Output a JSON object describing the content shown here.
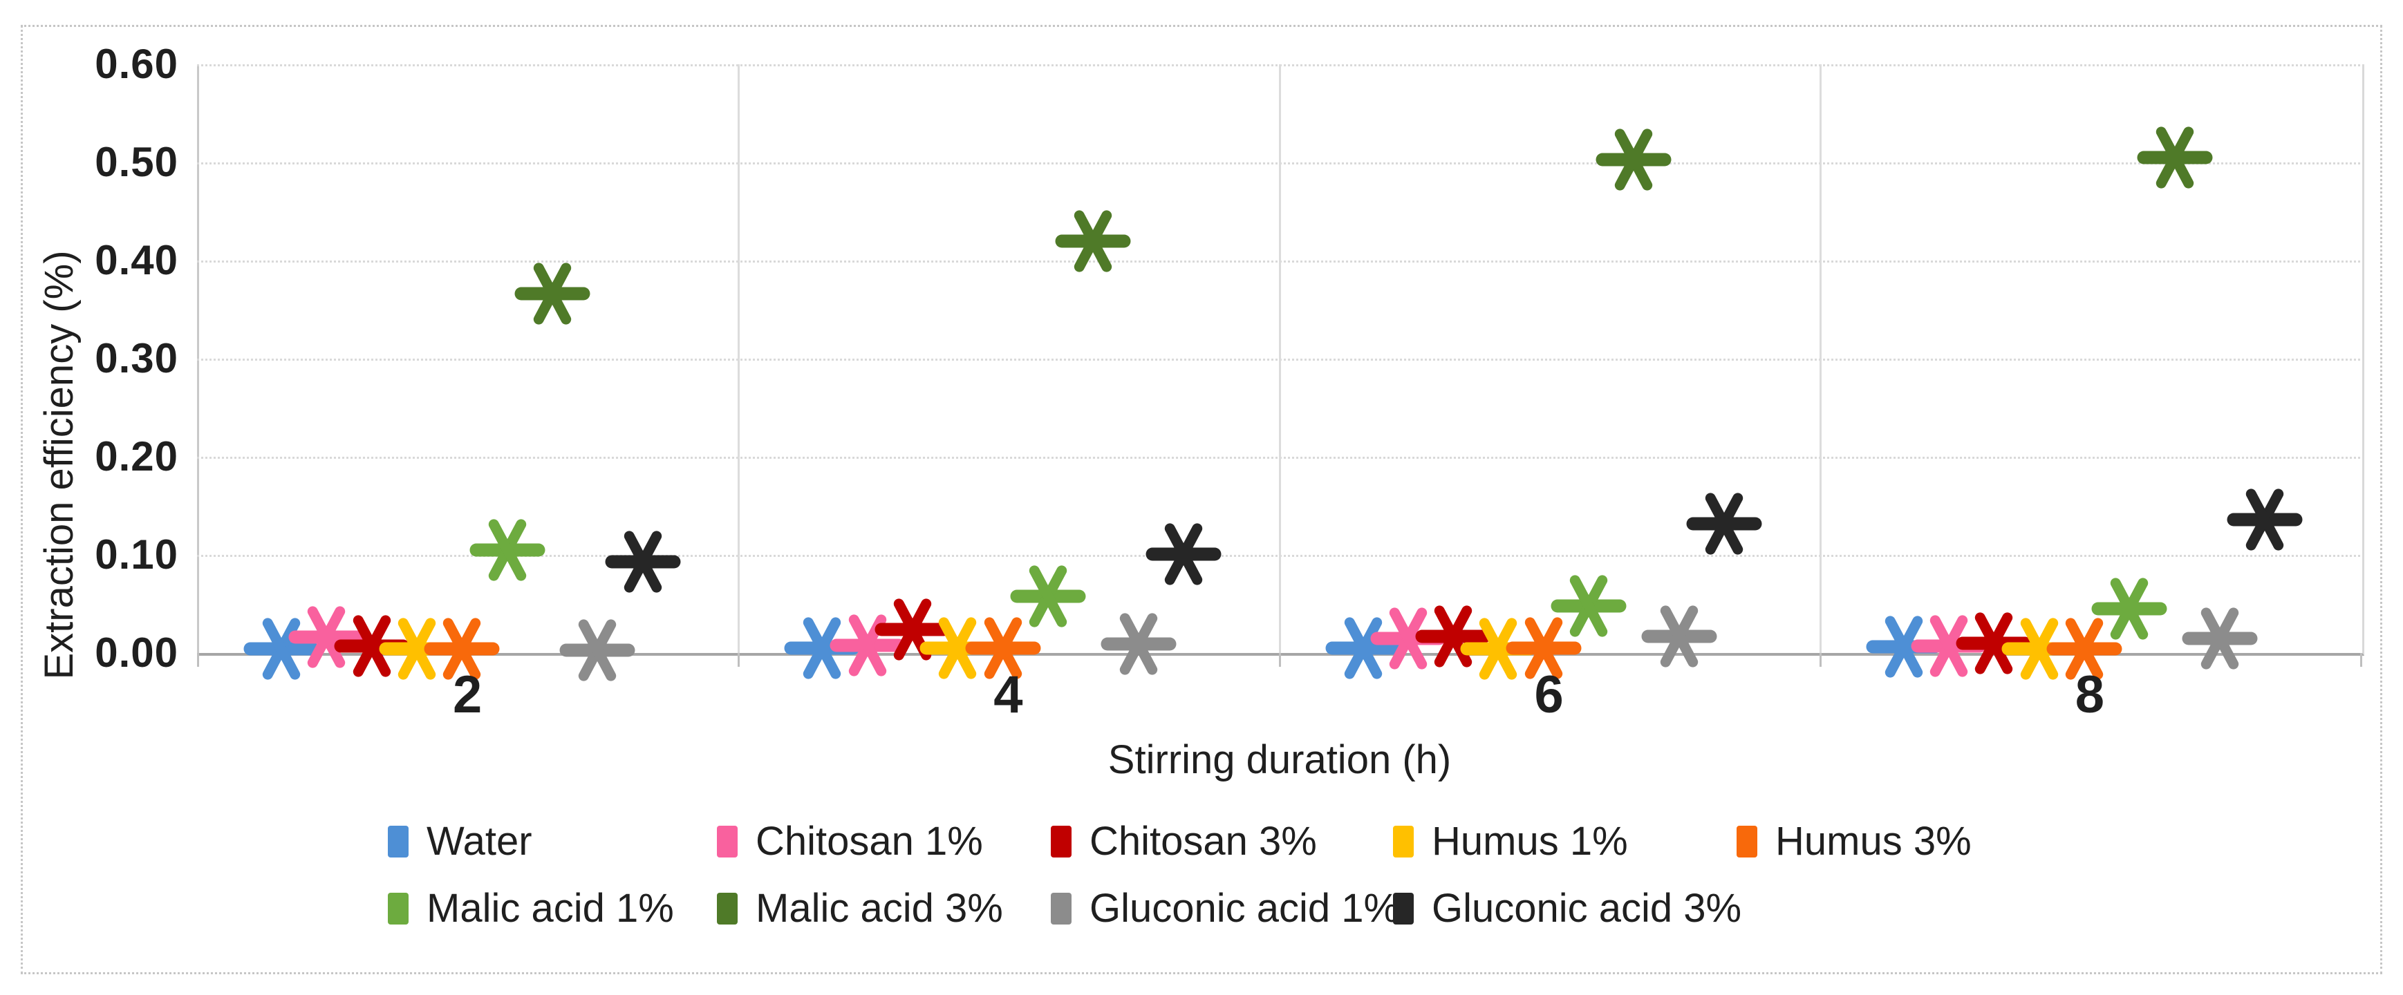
{
  "chart_data": {
    "type": "scatter",
    "title": "",
    "xlabel": "Stirring duration (h)",
    "ylabel": "Extraction efficiency (%)",
    "x_categories": [
      "2",
      "4",
      "6",
      "8"
    ],
    "y_ticks": [
      "0.00",
      "0.10",
      "0.20",
      "0.30",
      "0.40",
      "0.50",
      "0.60"
    ],
    "ylim": [
      0,
      0.6
    ],
    "grid": "horizontal dotted gridlines every 0.10; solid vertical category separators",
    "legend_position": "bottom, two rows",
    "marker_style": "asterisk",
    "series": [
      {
        "name": "Water",
        "color": "#4e8fd5",
        "values": [
          0.004,
          0.005,
          0.005,
          0.006
        ]
      },
      {
        "name": "Chitosan 1%",
        "color": "#f9619e",
        "values": [
          0.016,
          0.008,
          0.015,
          0.007
        ]
      },
      {
        "name": "Chitosan 3%",
        "color": "#c00000",
        "values": [
          0.007,
          0.024,
          0.017,
          0.01
        ]
      },
      {
        "name": "Humus 1%",
        "color": "#ffc000",
        "values": [
          0.004,
          0.005,
          0.004,
          0.004
        ]
      },
      {
        "name": "Humus 3%",
        "color": "#f8690b",
        "values": [
          0.004,
          0.005,
          0.005,
          0.004
        ]
      },
      {
        "name": "Malic acid 1%",
        "color": "#6dab3f",
        "values": [
          0.105,
          0.058,
          0.048,
          0.045
        ]
      },
      {
        "name": "Malic acid 3%",
        "color": "#4f7a28",
        "values": [
          0.366,
          0.42,
          0.503,
          0.505
        ]
      },
      {
        "name": "Gluconic acid 1%",
        "color": "#8c8c8c",
        "values": [
          0.003,
          0.009,
          0.017,
          0.015
        ]
      },
      {
        "name": "Gluconic acid 3%",
        "color": "#262626",
        "values": [
          0.093,
          0.101,
          0.132,
          0.136
        ]
      }
    ],
    "legend_rows": [
      [
        0,
        1,
        2,
        3,
        4
      ],
      [
        5,
        6,
        7,
        8
      ]
    ]
  }
}
